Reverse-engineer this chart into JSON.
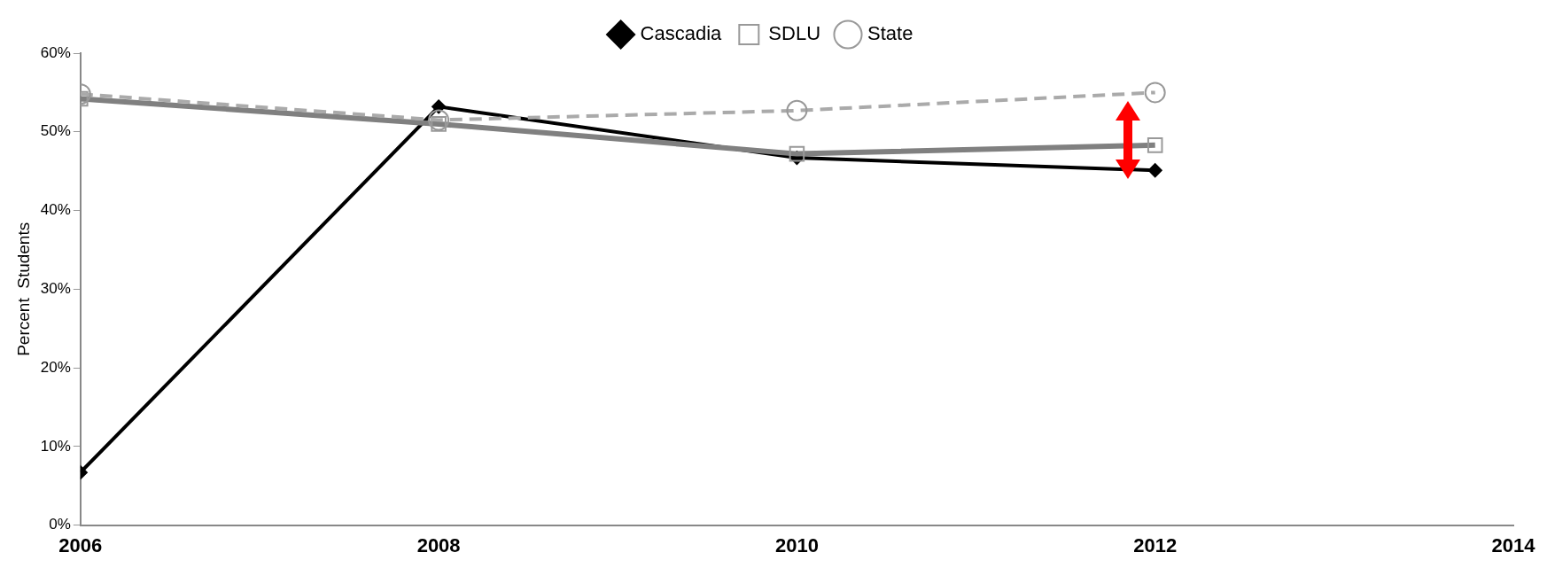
{
  "chart_data": {
    "type": "line",
    "ylabel": "Percent  Students",
    "x": [
      2006,
      2008,
      2010,
      2012
    ],
    "series": [
      {
        "name": "Cascadia",
        "color": "#000000",
        "values": [
          6.7,
          53.2,
          46.7,
          45.1
        ],
        "marker": "diamond",
        "line_style": "solid"
      },
      {
        "name": "SDLU",
        "color": "#808080",
        "values": [
          54.2,
          51,
          47.2,
          48.3
        ],
        "marker": "square",
        "line_style": "solid"
      },
      {
        "name": "State",
        "color": "#aaaaaa",
        "values": [
          54.8,
          51.5,
          52.7,
          55
        ],
        "marker": "circle",
        "line_style": "dashed"
      }
    ],
    "xlim": [
      2006,
      2014
    ],
    "xticks": [
      2006,
      2008,
      2010,
      2012,
      2014
    ],
    "ylim": [
      0,
      60
    ],
    "yticks": [
      {
        "value": 0,
        "label": "0%"
      },
      {
        "value": 10,
        "label": "10%"
      },
      {
        "value": 20,
        "label": "20%"
      },
      {
        "value": 30,
        "label": "30%"
      },
      {
        "value": 40,
        "label": "40%"
      },
      {
        "value": 50,
        "label": "50%"
      },
      {
        "value": 60,
        "label": "60%"
      }
    ],
    "grid": false,
    "legend": "top"
  }
}
